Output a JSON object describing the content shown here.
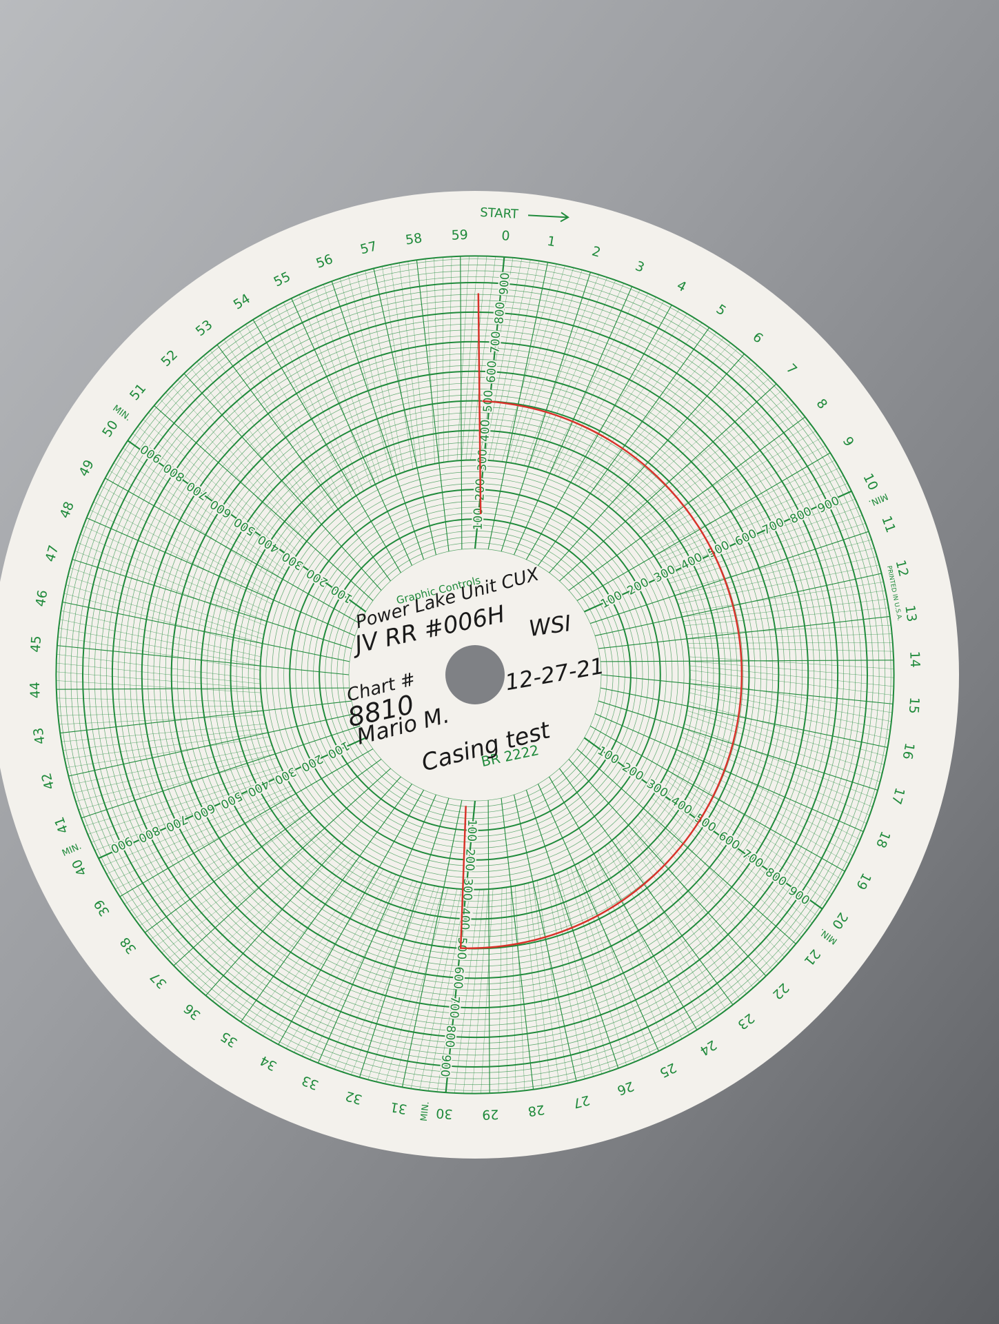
{
  "header": {
    "start": "START",
    "brand": "Graphic Controls",
    "printed": "PRINTED IN U.S.A.",
    "min": "MIN.",
    "form": "BR 2222"
  },
  "minutes": [
    0,
    1,
    2,
    3,
    4,
    5,
    6,
    7,
    8,
    9,
    10,
    11,
    12,
    13,
    14,
    15,
    16,
    17,
    18,
    19,
    20,
    21,
    22,
    23,
    24,
    25,
    26,
    27,
    28,
    29,
    30,
    31,
    32,
    33,
    34,
    35,
    36,
    37,
    38,
    39,
    40,
    41,
    42,
    43,
    44,
    45,
    46,
    47,
    48,
    49,
    50,
    51,
    52,
    53,
    54,
    55,
    56,
    57,
    58,
    59
  ],
  "scale": [
    100,
    200,
    300,
    400,
    500,
    600,
    700,
    800,
    900
  ],
  "handwriting": {
    "location": "Power Lake Unit CUX",
    "well": "JV RR #006H",
    "company": "WSI",
    "date": "12-27-21",
    "chart_label": "Chart #",
    "chart_number": "8810",
    "name": "Mario M.",
    "test": "Casing test"
  }
}
